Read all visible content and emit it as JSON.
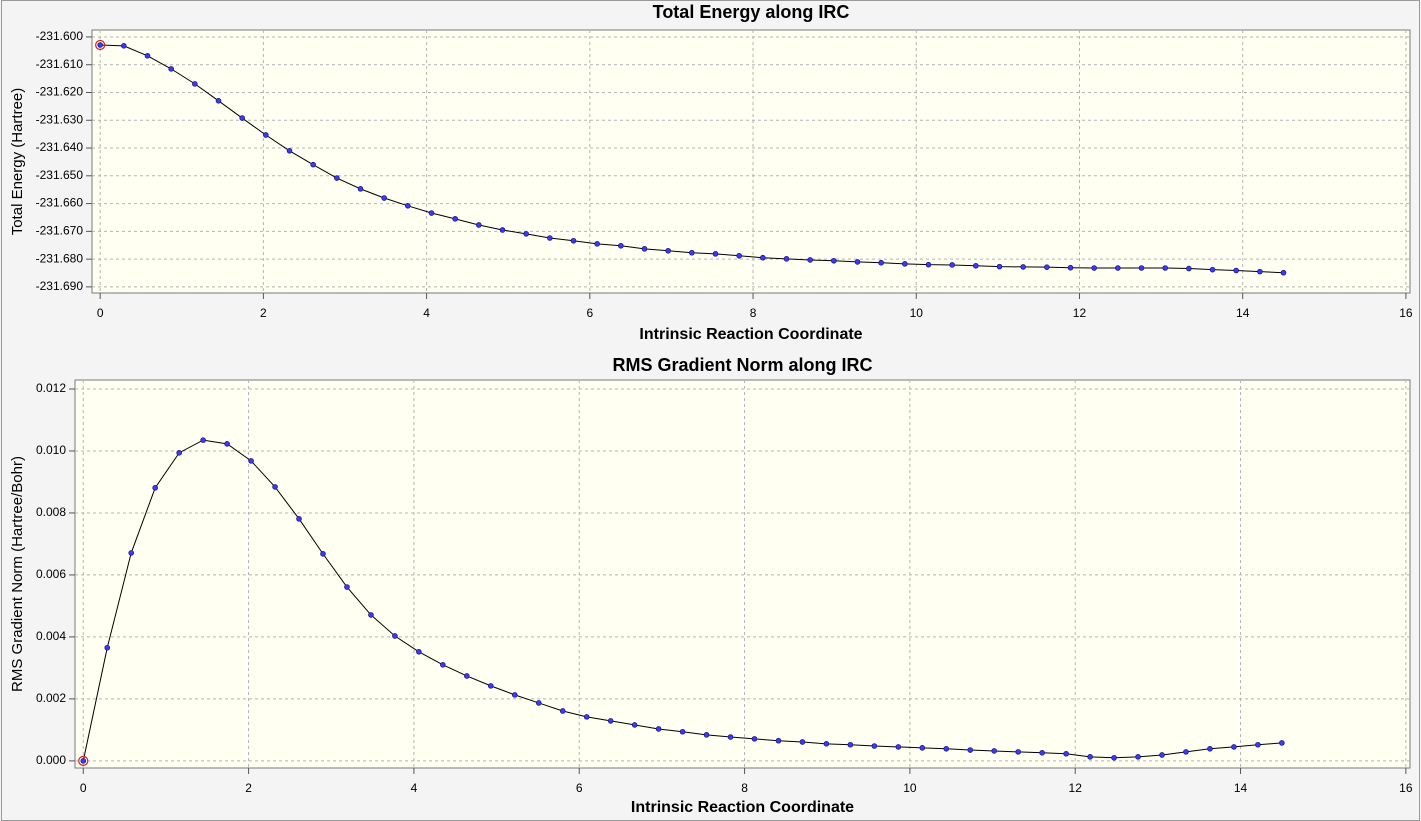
{
  "chart_data": [
    {
      "type": "line",
      "title": "Total Energy along IRC",
      "x_label": "Intrinsic Reaction Coordinate",
      "y_label": "Total Energy (Hartree)",
      "x": [
        0,
        0.29,
        0.58,
        0.87,
        1.16,
        1.45,
        1.74,
        2.03,
        2.32,
        2.61,
        2.9,
        3.19,
        3.48,
        3.77,
        4.06,
        4.35,
        4.64,
        4.93,
        5.22,
        5.51,
        5.8,
        6.09,
        6.38,
        6.67,
        6.96,
        7.25,
        7.54,
        7.83,
        8.12,
        8.41,
        8.7,
        8.99,
        9.28,
        9.57,
        9.86,
        10.15,
        10.44,
        10.73,
        11.02,
        11.31,
        11.6,
        11.89,
        12.18,
        12.47,
        12.76,
        13.05,
        13.34,
        13.63,
        13.92,
        14.21,
        14.5
      ],
      "values": [
        -231.6029,
        -231.6032,
        -231.6068,
        -231.6115,
        -231.6169,
        -231.623,
        -231.6292,
        -231.6353,
        -231.641,
        -231.646,
        -231.6508,
        -231.6547,
        -231.658,
        -231.6608,
        -231.6634,
        -231.6655,
        -231.6677,
        -231.6695,
        -231.6709,
        -231.6724,
        -231.6734,
        -231.6745,
        -231.6752,
        -231.6763,
        -231.677,
        -231.6777,
        -231.6781,
        -231.6788,
        -231.6795,
        -231.6799,
        -231.6803,
        -231.6806,
        -231.681,
        -231.6813,
        -231.6817,
        -231.682,
        -231.6821,
        -231.6824,
        -231.6827,
        -231.6828,
        -231.6829,
        -231.6831,
        -231.6832,
        -231.6832,
        -231.6832,
        -231.6832,
        -231.6834,
        -231.6838,
        -231.6841,
        -231.6845,
        -231.6849
      ],
      "color": "#3a3aff",
      "line_color": "#000000",
      "xlim": [
        -0.1,
        16.05
      ],
      "xticks": [
        0,
        2,
        4,
        6,
        8,
        10,
        12,
        14,
        16
      ],
      "ylim": [
        -231.6922,
        -231.5975
      ],
      "yticks": [
        {
          "value": -231.6,
          "label": "-231.600"
        },
        {
          "value": -231.61,
          "label": "-231.610"
        },
        {
          "value": -231.62,
          "label": "-231.620"
        },
        {
          "value": -231.63,
          "label": "-231.630"
        },
        {
          "value": -231.64,
          "label": "-231.640"
        },
        {
          "value": -231.65,
          "label": "-231.650"
        },
        {
          "value": -231.66,
          "label": "-231.660"
        },
        {
          "value": -231.67,
          "label": "-231.670"
        },
        {
          "value": -231.68,
          "label": "-231.680"
        },
        {
          "value": -231.69,
          "label": "-231.690"
        }
      ],
      "grid": true
    },
    {
      "type": "line",
      "title": "RMS Gradient Norm along IRC",
      "x_label": "Intrinsic Reaction Coordinate",
      "y_label": "RMS Gradient Norm (Hartree/Bohr)",
      "x": [
        0,
        0.29,
        0.58,
        0.87,
        1.16,
        1.45,
        1.74,
        2.03,
        2.32,
        2.61,
        2.9,
        3.19,
        3.48,
        3.77,
        4.06,
        4.35,
        4.64,
        4.93,
        5.22,
        5.51,
        5.8,
        6.09,
        6.38,
        6.67,
        6.96,
        7.25,
        7.54,
        7.83,
        8.12,
        8.41,
        8.7,
        8.99,
        9.28,
        9.57,
        9.86,
        10.15,
        10.44,
        10.73,
        11.02,
        11.31,
        11.6,
        11.89,
        12.18,
        12.47,
        12.76,
        13.05,
        13.34,
        13.63,
        13.92,
        14.21,
        14.5
      ],
      "values": [
        0,
        0.00365,
        0.00671,
        0.00881,
        0.00994,
        0.01035,
        0.01023,
        0.00968,
        0.00884,
        0.00781,
        0.00668,
        0.00561,
        0.00471,
        0.00403,
        0.00352,
        0.0031,
        0.00274,
        0.00242,
        0.00213,
        0.00187,
        0.00161,
        0.00142,
        0.00129,
        0.00116,
        0.00103,
        0.00094,
        0.00084,
        0.00077,
        0.00071,
        0.00065,
        0.00061,
        0.00055,
        0.00052,
        0.00048,
        0.00045,
        0.00042,
        0.00039,
        0.00035,
        0.00032,
        0.00029,
        0.00026,
        0.00023,
        0.00013,
        0.0001,
        0.00013,
        0.00019,
        0.00029,
        0.00039,
        0.00045,
        0.00052,
        0.00058
      ],
      "color": "#3a3aff",
      "line_color": "#000000",
      "xlim": [
        -0.1,
        16.05
      ],
      "xticks": [
        0,
        2,
        4,
        6,
        8,
        10,
        12,
        14,
        16
      ],
      "ylim": [
        -0.00023,
        0.01229
      ],
      "yticks": [
        {
          "value": 0,
          "label": "0.000"
        },
        {
          "value": 0.002,
          "label": "0.002"
        },
        {
          "value": 0.004,
          "label": "0.004"
        },
        {
          "value": 0.006,
          "label": "0.006"
        },
        {
          "value": 0.008,
          "label": "0.008"
        },
        {
          "value": 0.01,
          "label": "0.010"
        },
        {
          "value": 0.012,
          "label": "0.012"
        }
      ],
      "grid": true
    }
  ]
}
